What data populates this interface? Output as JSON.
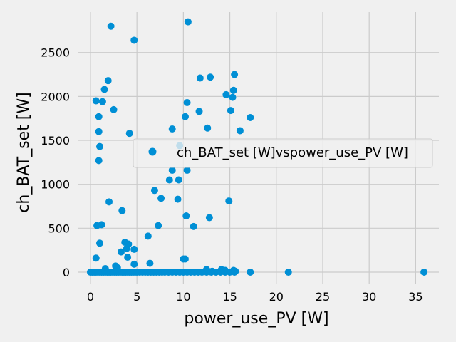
{
  "chart_data": {
    "type": "scatter",
    "xlabel": "power_use_PV [W]",
    "ylabel": "ch_BAT_set [W]",
    "xlim": [
      -1.3,
      37.5
    ],
    "ylim": [
      -130,
      2960
    ],
    "xticks": [
      0,
      5,
      10,
      15,
      20,
      25,
      30,
      35
    ],
    "yticks": [
      0,
      500,
      1000,
      1500,
      2000,
      2500
    ],
    "grid": true,
    "legend_position": "center-right",
    "style": {
      "background": "#f0f0f0",
      "grid_color": "#cbcbcb",
      "marker_color": "#008fd5"
    },
    "series": [
      {
        "name": "ch_BAT_set [W]vspower_use_PV [W]",
        "points": [
          [
            2.2,
            2800
          ],
          [
            4.7,
            2640
          ],
          [
            10.5,
            2850
          ],
          [
            1.9,
            2180
          ],
          [
            1.5,
            2080
          ],
          [
            0.6,
            1950
          ],
          [
            1.3,
            1940
          ],
          [
            2.5,
            1850
          ],
          [
            0.9,
            1770
          ],
          [
            0.9,
            1600
          ],
          [
            4.2,
            1580
          ],
          [
            1.0,
            1430
          ],
          [
            0.9,
            1270
          ],
          [
            2.0,
            800
          ],
          [
            3.4,
            700
          ],
          [
            11.8,
            2210
          ],
          [
            12.9,
            2220
          ],
          [
            15.5,
            2250
          ],
          [
            15.4,
            2070
          ],
          [
            14.6,
            2020
          ],
          [
            15.3,
            1990
          ],
          [
            10.4,
            1930
          ],
          [
            11.7,
            1830
          ],
          [
            15.1,
            1840
          ],
          [
            10.2,
            1770
          ],
          [
            17.2,
            1760
          ],
          [
            8.8,
            1630
          ],
          [
            12.6,
            1640
          ],
          [
            16.1,
            1610
          ],
          [
            9.6,
            1440
          ],
          [
            8.8,
            1160
          ],
          [
            10.4,
            1160
          ],
          [
            6.9,
            930
          ],
          [
            8.5,
            1050
          ],
          [
            9.5,
            1050
          ],
          [
            7.6,
            840
          ],
          [
            9.4,
            830
          ],
          [
            14.9,
            810
          ],
          [
            10.3,
            640
          ],
          [
            12.8,
            620
          ],
          [
            7.3,
            530
          ],
          [
            11.1,
            520
          ],
          [
            6.2,
            410
          ],
          [
            0.7,
            530
          ],
          [
            1.2,
            540
          ],
          [
            1.0,
            330
          ],
          [
            3.7,
            340
          ],
          [
            4.1,
            320
          ],
          [
            3.9,
            270
          ],
          [
            3.3,
            230
          ],
          [
            4.7,
            260
          ],
          [
            4.0,
            170
          ],
          [
            0.6,
            160
          ],
          [
            6.4,
            100
          ],
          [
            4.7,
            90
          ],
          [
            10.2,
            150
          ],
          [
            10.0,
            150
          ],
          [
            2.7,
            70
          ],
          [
            2.9,
            50
          ],
          [
            1.6,
            40
          ],
          [
            12.5,
            30
          ],
          [
            14.1,
            30
          ],
          [
            14.5,
            20
          ],
          [
            15.4,
            20
          ],
          [
            15.6,
            10
          ],
          [
            13.1,
            10
          ],
          [
            0.0,
            0
          ],
          [
            0.2,
            0
          ],
          [
            0.4,
            0
          ],
          [
            0.6,
            0
          ],
          [
            0.8,
            0
          ],
          [
            1.0,
            0
          ],
          [
            1.2,
            0
          ],
          [
            1.4,
            0
          ],
          [
            1.6,
            0
          ],
          [
            1.8,
            0
          ],
          [
            2.0,
            0
          ],
          [
            2.2,
            0
          ],
          [
            2.4,
            0
          ],
          [
            2.6,
            0
          ],
          [
            2.8,
            0
          ],
          [
            3.0,
            0
          ],
          [
            3.2,
            0
          ],
          [
            3.4,
            0
          ],
          [
            3.6,
            0
          ],
          [
            3.8,
            0
          ],
          [
            4.0,
            0
          ],
          [
            4.2,
            0
          ],
          [
            4.4,
            0
          ],
          [
            4.6,
            0
          ],
          [
            4.8,
            0
          ],
          [
            5.0,
            0
          ],
          [
            5.3,
            0
          ],
          [
            5.6,
            0
          ],
          [
            5.9,
            0
          ],
          [
            6.2,
            0
          ],
          [
            6.5,
            0
          ],
          [
            6.8,
            0
          ],
          [
            7.1,
            0
          ],
          [
            7.4,
            0
          ],
          [
            7.7,
            0
          ],
          [
            8.0,
            0
          ],
          [
            8.4,
            0
          ],
          [
            8.8,
            0
          ],
          [
            9.2,
            0
          ],
          [
            9.6,
            0
          ],
          [
            10.0,
            0
          ],
          [
            10.4,
            0
          ],
          [
            10.8,
            0
          ],
          [
            11.2,
            0
          ],
          [
            11.6,
            0
          ],
          [
            12.0,
            0
          ],
          [
            12.5,
            0
          ],
          [
            13.0,
            0
          ],
          [
            13.5,
            0
          ],
          [
            14.0,
            0
          ],
          [
            14.5,
            0
          ],
          [
            15.0,
            0
          ],
          [
            15.5,
            0
          ],
          [
            17.2,
            0
          ],
          [
            21.3,
            0
          ],
          [
            35.9,
            0
          ]
        ]
      }
    ]
  }
}
